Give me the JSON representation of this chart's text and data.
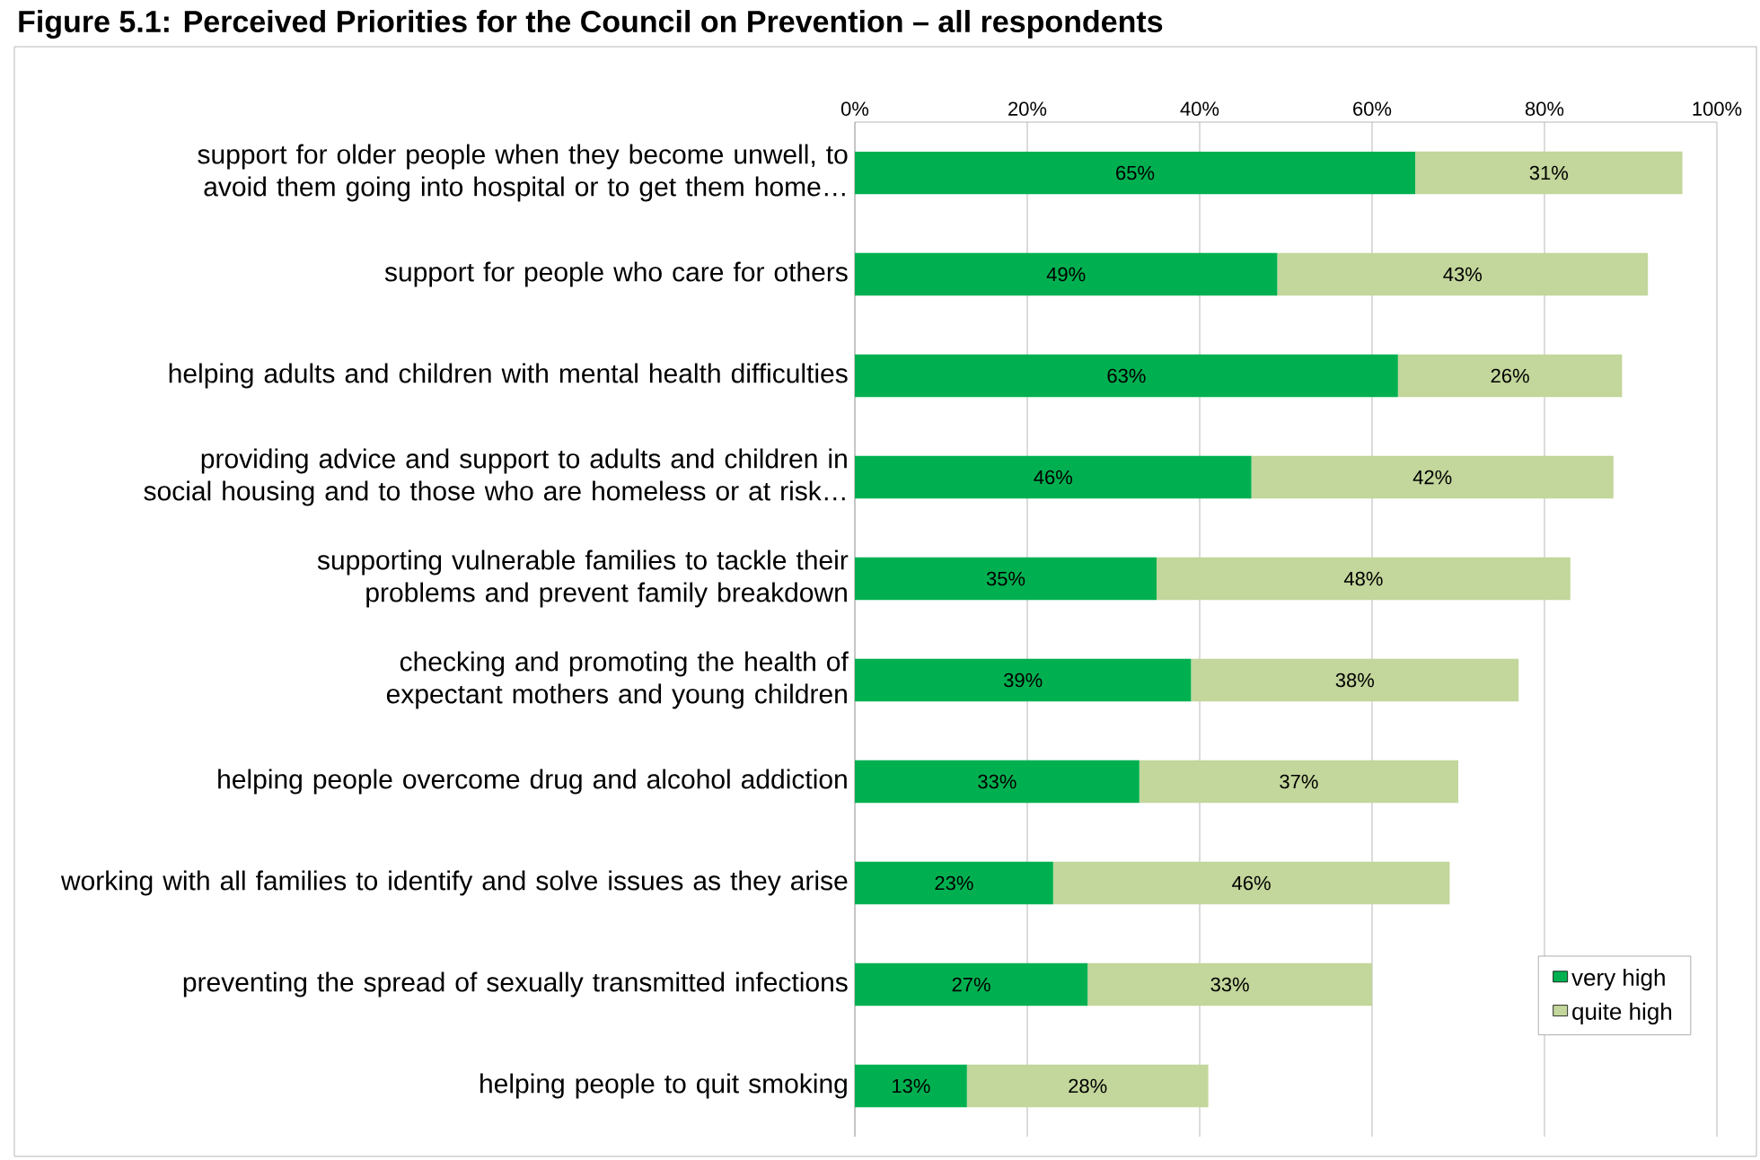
{
  "chart_data": {
    "type": "bar",
    "orientation": "horizontal",
    "stacked": true,
    "title": "Figure 5.1: Perceived Priorities for the Council on Prevention – all respondents",
    "categories": [
      "support for older people when they become unwell, to avoid them going into hospital or to get them home…",
      "support for people who care for others",
      "helping adults and children with mental health difficulties",
      "providing advice and support to adults and children in social housing and to those who are homeless or at risk…",
      "supporting vulnerable families to tackle their problems and prevent family breakdown",
      "checking and promoting the health of expectant mothers and young children",
      "helping people overcome drug and alcohol addiction",
      "working with all families to identify and solve issues as they arise",
      "preventing the spread of sexually transmitted infections",
      "helping people to quit smoking"
    ],
    "series": [
      {
        "name": "very high",
        "color": "#00b050",
        "values": [
          65,
          49,
          63,
          46,
          35,
          39,
          33,
          23,
          27,
          13
        ],
        "value_labels": [
          "65%",
          "49%",
          "63%",
          "46%",
          "35%",
          "39%",
          "33%",
          "23%",
          "27%",
          "13%"
        ]
      },
      {
        "name": "quite high",
        "color": "#c3d69b",
        "values": [
          31,
          43,
          26,
          42,
          48,
          38,
          37,
          46,
          33,
          28
        ],
        "value_labels": [
          "31%",
          "43%",
          "26%",
          "42%",
          "48%",
          "38%",
          "37%",
          "46%",
          "33%",
          "28%"
        ]
      }
    ],
    "xlim": [
      0,
      100
    ],
    "xticks": [
      {
        "value": 0,
        "label": "0%"
      },
      {
        "value": 20,
        "label": "20%"
      },
      {
        "value": 40,
        "label": "40%"
      },
      {
        "value": 60,
        "label": "60%"
      },
      {
        "value": 80,
        "label": "80%"
      },
      {
        "value": 100,
        "label": "100%"
      }
    ],
    "grid": "x",
    "legend": "bottom right"
  }
}
